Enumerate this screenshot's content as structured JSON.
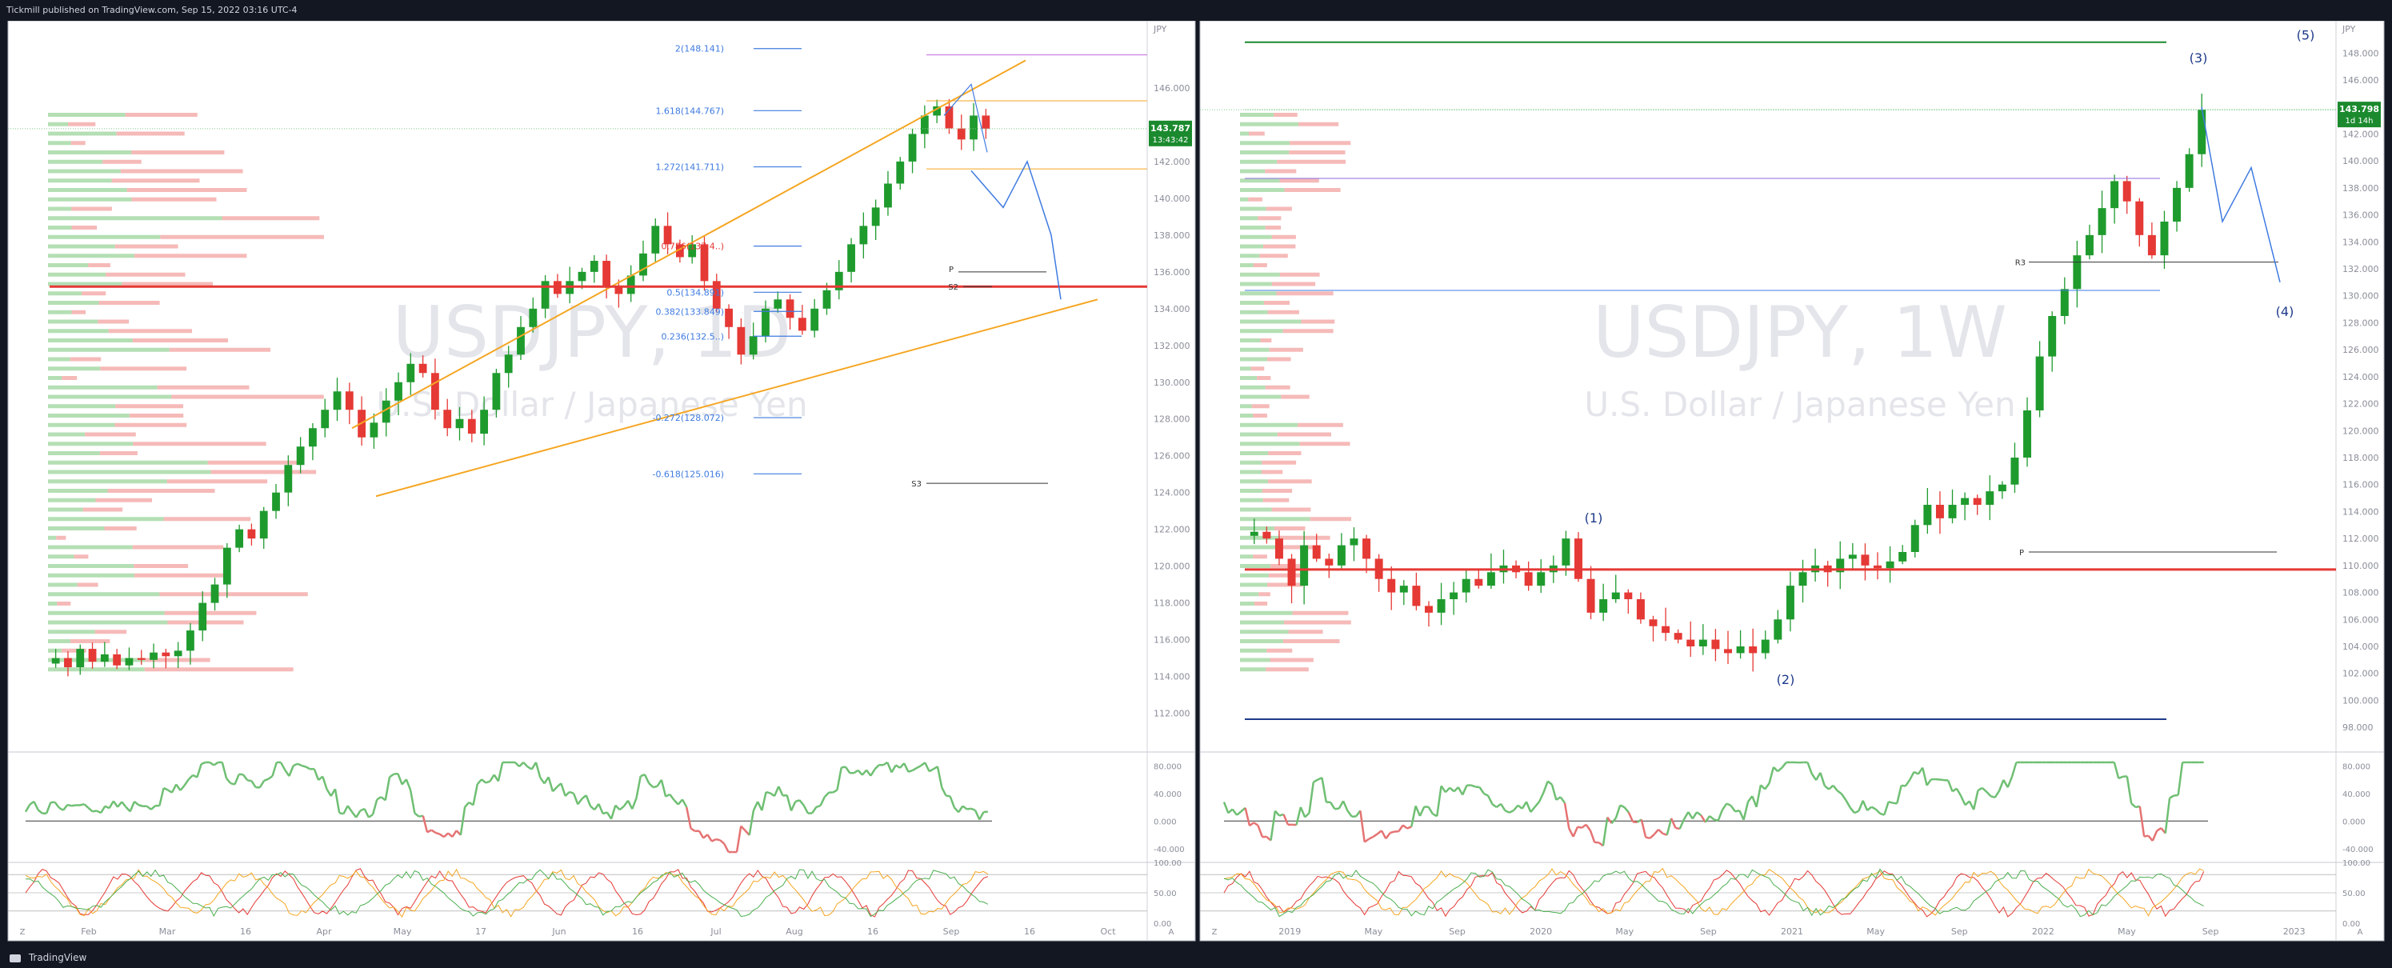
{
  "header": {
    "caption": "Tickmill published on TradingView.com, Sep 15, 2022 03:16 UTC-4"
  },
  "footer": {
    "brand": "TradingView"
  },
  "left_chart": {
    "watermark_symbol": "USDJPY, 1D",
    "watermark_name": "U.S. Dollar / Japanese Yen",
    "currency": "JPY",
    "price_label": "143.787",
    "countdown_label": "13:43:42",
    "price_ticks": [
      "146.000",
      "144.000",
      "142.000",
      "140.000",
      "138.000",
      "136.000",
      "134.000",
      "132.000",
      "130.000",
      "128.000",
      "126.000",
      "124.000",
      "122.000",
      "120.000",
      "118.000",
      "116.000",
      "114.000",
      "112.000"
    ],
    "x_ticks": [
      "Feb",
      "Mar",
      "16",
      "Apr",
      "May",
      "17",
      "Jun",
      "16",
      "Jul",
      "Aug",
      "16",
      "Sep",
      "16",
      "Oct"
    ],
    "fib_labels": [
      "2(148.141)",
      "1.618(144.767)",
      "1.272(141.711)",
      "0.786(137.4..)",
      "0.5(134.891)",
      "0.382(133.849)",
      "0.236(132.5..)",
      "-0.272(128.072)",
      "-0.618(125.016)"
    ],
    "pivot_labels": [
      "P",
      "S2",
      "S3"
    ],
    "rsi_ticks": [
      "80.000",
      "40.000",
      "0.000",
      "-40.000"
    ],
    "stoch_ticks": [
      "100.00",
      "50.00",
      "0.00"
    ],
    "zoom_icon": "Z",
    "auto_icon": "A"
  },
  "right_chart": {
    "watermark_symbol": "USDJPY, 1W",
    "watermark_name": "U.S. Dollar / Japanese Yen",
    "currency": "JPY",
    "price_label": "143.798",
    "countdown_label": "1d 14h",
    "price_ticks": [
      "148.000",
      "146.000",
      "144.000",
      "142.000",
      "140.000",
      "138.000",
      "136.000",
      "134.000",
      "132.000",
      "130.000",
      "128.000",
      "126.000",
      "124.000",
      "122.000",
      "120.000",
      "118.000",
      "116.000",
      "114.000",
      "112.000",
      "110.000",
      "108.000",
      "106.000",
      "104.000",
      "102.000",
      "100.000",
      "98.000"
    ],
    "x_ticks": [
      "2019",
      "May",
      "Sep",
      "2020",
      "May",
      "Sep",
      "2021",
      "May",
      "Sep",
      "2022",
      "May",
      "Sep",
      "2023"
    ],
    "wave_labels": [
      "(1)",
      "(2)",
      "(3)",
      "(4)",
      "(5)"
    ],
    "pivot_labels": [
      "R3",
      "P"
    ],
    "rsi_ticks": [
      "80.000",
      "40.000",
      "0.000",
      "-40.000"
    ],
    "stoch_ticks": [
      "100.00",
      "50.00",
      "0.00"
    ],
    "zoom_icon": "Z",
    "auto_icon": "A"
  },
  "colors": {
    "background": "#131722",
    "up": "#1f9b2e",
    "down": "#e53935",
    "orange": "#f5a623",
    "red_line": "#e53935",
    "blue": "#3f7be0",
    "violet": "#c865e0",
    "navy": "#1e3a8a",
    "green_line": "#4caf50"
  },
  "chart_data": [
    {
      "type": "candlestick",
      "title": "USDJPY, 1D",
      "ylabel": "JPY",
      "ylim": [
        110.5,
        149
      ],
      "annotations": {
        "fibonacci": [
          {
            "level": "2",
            "price": 148.141
          },
          {
            "level": "1.618",
            "price": 144.767
          },
          {
            "level": "1.272",
            "price": 141.711
          },
          {
            "level": "0.786",
            "price": 137.4
          },
          {
            "level": "0.5",
            "price": 134.891
          },
          {
            "level": "0.382",
            "price": 133.849
          },
          {
            "level": "0.236",
            "price": 132.5
          },
          {
            "level": "-0.272",
            "price": 128.072
          },
          {
            "level": "-0.618",
            "price": 125.016
          }
        ],
        "last_price": 143.787
      },
      "close_path": [
        115,
        114.5,
        115.5,
        114.8,
        115.2,
        114.6,
        115,
        114.9,
        115.3,
        115.1,
        115.4,
        116.5,
        118,
        119,
        121,
        122,
        121.5,
        123,
        124,
        125.5,
        126.5,
        127.5,
        128.5,
        129.5,
        128.5,
        127,
        127.8,
        129,
        130,
        131,
        130.5,
        128.5,
        127.5,
        128,
        127.2,
        128.5,
        130.5,
        131.5,
        133,
        134,
        135.5,
        134.8,
        135.5,
        136,
        136.6,
        135.2,
        134.8,
        135.8,
        137,
        138.5,
        137.5,
        136.8,
        137.5,
        135.5,
        134,
        133,
        131.5,
        132.5,
        134,
        134.5,
        133.5,
        132.8,
        134,
        135,
        136,
        137.5,
        138.5,
        139.5,
        140.8,
        142,
        143.5,
        144.5,
        145,
        143.8,
        143.2,
        144.5,
        143.787
      ]
    },
    {
      "type": "candlestick",
      "title": "USDJPY, 1W",
      "ylabel": "JPY",
      "ylim": [
        97,
        149.5
      ],
      "annotations": {
        "elliott_waves": [
          "(1)",
          "(2)",
          "(3)",
          "(4)",
          "(5)"
        ],
        "last_price": 143.798
      },
      "close_path": [
        112.5,
        112,
        110.5,
        108.5,
        111.5,
        110.5,
        110,
        111.5,
        112,
        110.5,
        109,
        108,
        108.5,
        107,
        106.5,
        107.5,
        108,
        109,
        108.5,
        109.5,
        110,
        109.5,
        108.5,
        109.5,
        110,
        112,
        109,
        106.5,
        107.5,
        108,
        107.5,
        106,
        105.5,
        105,
        104.5,
        104,
        104.5,
        103.8,
        103.5,
        104,
        103.5,
        104.5,
        106,
        108.5,
        109.5,
        110,
        109.5,
        110.5,
        110.8,
        110,
        109.8,
        110.3,
        111,
        113,
        114.5,
        113.5,
        114.5,
        115,
        114.5,
        115.5,
        116,
        118,
        121.5,
        125.5,
        128.5,
        130.5,
        133,
        134.5,
        136.5,
        138.5,
        137,
        134.5,
        133,
        135.5,
        138,
        140.5,
        143.798
      ]
    }
  ]
}
